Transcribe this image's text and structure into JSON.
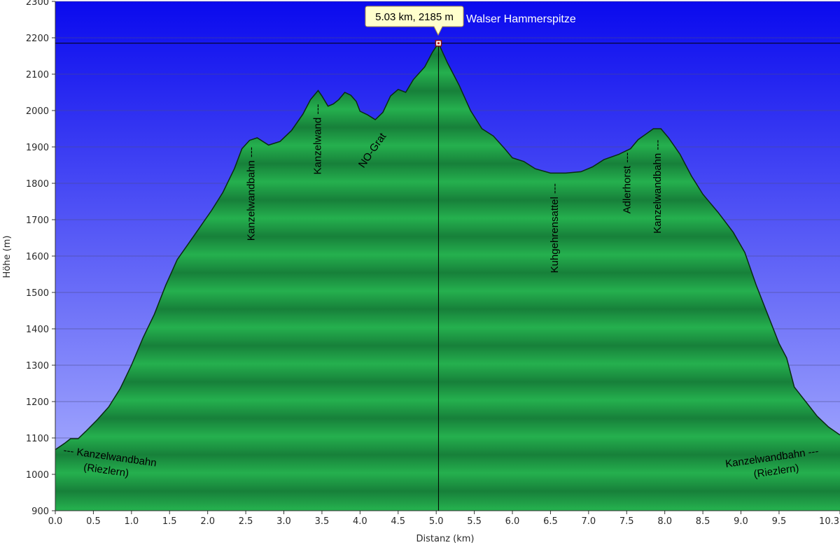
{
  "chart_data": {
    "type": "area",
    "xlabel": "Distanz (km)",
    "ylabel": "Höhe (m)",
    "xlim": [
      0,
      10.3
    ],
    "ylim": [
      900,
      2300
    ],
    "x_ticks": [
      0.0,
      0.5,
      1.0,
      1.5,
      2.0,
      2.5,
      3.0,
      3.5,
      4.0,
      4.5,
      5.0,
      5.5,
      6.0,
      6.5,
      7.0,
      7.5,
      8.0,
      8.5,
      9.0,
      9.5,
      10.3
    ],
    "x_tick_labels": [
      "0.0",
      "0.5",
      "1.0",
      "1.5",
      "2.0",
      "2.5",
      "3.0",
      "3.5",
      "4.0",
      "4.5",
      "5.0",
      "5.5",
      "6.0",
      "6.5",
      "7.0",
      "7.5",
      "8.0",
      "8.5",
      "9.0",
      "9.5",
      "10.3"
    ],
    "y_ticks": [
      900,
      1000,
      1100,
      1200,
      1300,
      1400,
      1500,
      1600,
      1700,
      1800,
      1900,
      2000,
      2100,
      2200,
      2300
    ],
    "grid": true,
    "colors": {
      "sky_top": "#0a0aee",
      "sky_bottom": "#b2b8ff",
      "fill_light": "#25b04e",
      "fill_dark": "#17803a",
      "outline": "#0a2a12",
      "tooltip_bg": "#ffffcc"
    },
    "profile": [
      {
        "x": 0.0,
        "y": 1068
      },
      {
        "x": 0.05,
        "y": 1075
      },
      {
        "x": 0.12,
        "y": 1085
      },
      {
        "x": 0.2,
        "y": 1098
      },
      {
        "x": 0.3,
        "y": 1098
      },
      {
        "x": 0.4,
        "y": 1118
      },
      {
        "x": 0.55,
        "y": 1150
      },
      {
        "x": 0.7,
        "y": 1185
      },
      {
        "x": 0.85,
        "y": 1235
      },
      {
        "x": 1.0,
        "y": 1300
      },
      {
        "x": 1.15,
        "y": 1375
      },
      {
        "x": 1.3,
        "y": 1440
      },
      {
        "x": 1.45,
        "y": 1520
      },
      {
        "x": 1.6,
        "y": 1590
      },
      {
        "x": 1.75,
        "y": 1635
      },
      {
        "x": 1.9,
        "y": 1680
      },
      {
        "x": 2.05,
        "y": 1725
      },
      {
        "x": 2.2,
        "y": 1775
      },
      {
        "x": 2.35,
        "y": 1840
      },
      {
        "x": 2.45,
        "y": 1895
      },
      {
        "x": 2.55,
        "y": 1918
      },
      {
        "x": 2.65,
        "y": 1925
      },
      {
        "x": 2.8,
        "y": 1905
      },
      {
        "x": 2.95,
        "y": 1915
      },
      {
        "x": 3.1,
        "y": 1945
      },
      {
        "x": 3.25,
        "y": 1990
      },
      {
        "x": 3.35,
        "y": 2030
      },
      {
        "x": 3.45,
        "y": 2055
      },
      {
        "x": 3.5,
        "y": 2040
      },
      {
        "x": 3.58,
        "y": 2012
      },
      {
        "x": 3.65,
        "y": 2018
      },
      {
        "x": 3.72,
        "y": 2030
      },
      {
        "x": 3.8,
        "y": 2050
      },
      {
        "x": 3.88,
        "y": 2042
      },
      {
        "x": 3.95,
        "y": 2025
      },
      {
        "x": 4.0,
        "y": 1998
      },
      {
        "x": 4.1,
        "y": 1988
      },
      {
        "x": 4.2,
        "y": 1975
      },
      {
        "x": 4.3,
        "y": 1995
      },
      {
        "x": 4.4,
        "y": 2040
      },
      {
        "x": 4.5,
        "y": 2058
      },
      {
        "x": 4.6,
        "y": 2050
      },
      {
        "x": 4.7,
        "y": 2085
      },
      {
        "x": 4.85,
        "y": 2120
      },
      {
        "x": 4.95,
        "y": 2160
      },
      {
        "x": 5.03,
        "y": 2185
      },
      {
        "x": 5.15,
        "y": 2130
      },
      {
        "x": 5.3,
        "y": 2070
      },
      {
        "x": 5.45,
        "y": 2000
      },
      {
        "x": 5.6,
        "y": 1950
      },
      {
        "x": 5.75,
        "y": 1930
      },
      {
        "x": 5.9,
        "y": 1895
      },
      {
        "x": 6.0,
        "y": 1870
      },
      {
        "x": 6.15,
        "y": 1860
      },
      {
        "x": 6.3,
        "y": 1840
      },
      {
        "x": 6.5,
        "y": 1828
      },
      {
        "x": 6.7,
        "y": 1828
      },
      {
        "x": 6.9,
        "y": 1832
      },
      {
        "x": 7.05,
        "y": 1845
      },
      {
        "x": 7.2,
        "y": 1865
      },
      {
        "x": 7.4,
        "y": 1880
      },
      {
        "x": 7.55,
        "y": 1895
      },
      {
        "x": 7.65,
        "y": 1920
      },
      {
        "x": 7.75,
        "y": 1935
      },
      {
        "x": 7.85,
        "y": 1950
      },
      {
        "x": 7.95,
        "y": 1950
      },
      {
        "x": 8.05,
        "y": 1925
      },
      {
        "x": 8.2,
        "y": 1880
      },
      {
        "x": 8.35,
        "y": 1820
      },
      {
        "x": 8.5,
        "y": 1770
      },
      {
        "x": 8.7,
        "y": 1720
      },
      {
        "x": 8.9,
        "y": 1665
      },
      {
        "x": 9.05,
        "y": 1610
      },
      {
        "x": 9.2,
        "y": 1520
      },
      {
        "x": 9.35,
        "y": 1440
      },
      {
        "x": 9.5,
        "y": 1360
      },
      {
        "x": 9.6,
        "y": 1320
      },
      {
        "x": 9.7,
        "y": 1240
      },
      {
        "x": 9.85,
        "y": 1200
      },
      {
        "x": 10.0,
        "y": 1160
      },
      {
        "x": 10.15,
        "y": 1130
      },
      {
        "x": 10.3,
        "y": 1108
      }
    ],
    "highlight": {
      "x": 5.03,
      "y": 2185,
      "tooltip": "5.03 km, 2185 m",
      "name": "Walser Hammerspitze"
    },
    "annotations": [
      {
        "text": "Kanzelwandbahn ---",
        "x": 2.57,
        "y": 1900,
        "rotation": -90
      },
      {
        "text": "Kanzelwand ---",
        "x": 3.44,
        "y": 2018,
        "rotation": -90
      },
      {
        "text": "NO-Grat",
        "x": 4.3,
        "y": 1930,
        "rotation": -55
      },
      {
        "text": "Kuhgehrensattel ---",
        "x": 6.55,
        "y": 1800,
        "rotation": -90
      },
      {
        "text": "Adlerhorst ---",
        "x": 7.5,
        "y": 1885,
        "rotation": -90
      },
      {
        "text": "Kanzelwandbahn ---",
        "x": 7.9,
        "y": 1920,
        "rotation": -90
      }
    ],
    "bottom_labels": [
      {
        "line1": "--- Kanzelwandbahn",
        "line2": "(Riezlern)",
        "side": "left"
      },
      {
        "line1": "Kanzelwandbahn ---",
        "line2": "(Riezlern)",
        "side": "right"
      }
    ]
  }
}
